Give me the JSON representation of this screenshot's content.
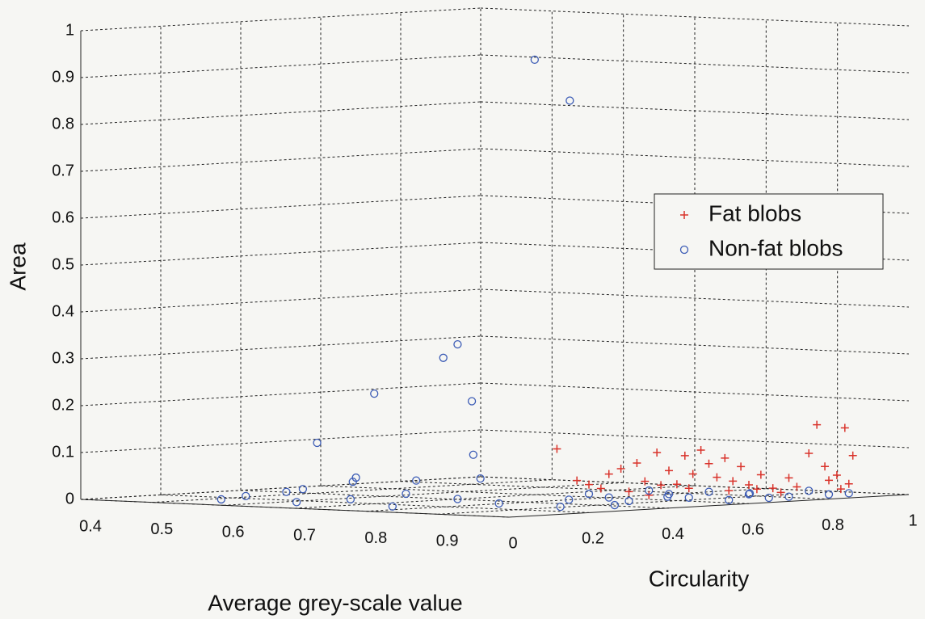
{
  "chart_data": {
    "type": "scatter3d",
    "xlabel": "Average grey-scale value",
    "ylabel": "Circularity",
    "zlabel": "Area",
    "xlim": [
      0.4,
      1
    ],
    "ylim": [
      0,
      1
    ],
    "zlim": [
      0,
      1
    ],
    "xticks": [
      0.4,
      0.5,
      0.6,
      0.7,
      0.8,
      0.9
    ],
    "yticks": [
      0,
      0.2,
      0.4,
      0.6,
      0.8,
      1
    ],
    "zticks": [
      0,
      0.1,
      0.2,
      0.3,
      0.4,
      0.5,
      0.6,
      0.7,
      0.8,
      0.9,
      1
    ],
    "grid": true,
    "legend": "upper right",
    "series": [
      {
        "name": "Fat blobs",
        "color": "#d9332b",
        "marker": "+",
        "x": [
          1,
          1,
          1,
          1,
          1,
          1,
          1,
          1,
          1,
          1,
          1,
          1,
          1,
          1,
          1,
          1,
          1,
          1,
          1,
          1,
          1,
          1,
          1,
          1,
          1,
          1,
          1,
          1,
          1,
          1,
          1,
          1,
          1,
          1,
          1,
          1,
          1,
          1,
          1,
          1
        ],
        "y": [
          0.12,
          0.17,
          0.2,
          0.23,
          0.28,
          0.32,
          0.34,
          0.37,
          0.4,
          0.42,
          0.44,
          0.46,
          0.48,
          0.5,
          0.52,
          0.54,
          0.56,
          0.58,
          0.6,
          0.63,
          0.66,
          0.7,
          0.72,
          0.75,
          0.77,
          0.79,
          0.8,
          0.82,
          0.84,
          0.85,
          0.86,
          0.83,
          0.45,
          0.38,
          0.3,
          0.25,
          0.62,
          0.68,
          0.35,
          0.55
        ],
        "z": [
          0.14,
          0.07,
          0.06,
          0.05,
          0.09,
          0.1,
          0.06,
          0.12,
          0.08,
          0.05,
          0.11,
          0.07,
          0.12,
          0.09,
          0.06,
          0.1,
          0.05,
          0.08,
          0.04,
          0.06,
          0.03,
          0.05,
          0.03,
          0.1,
          0.16,
          0.07,
          0.04,
          0.05,
          0.15,
          0.03,
          0.09,
          0.02,
          0.04,
          0.05,
          0.04,
          0.08,
          0.03,
          0.02,
          0.03,
          0.03
        ]
      },
      {
        "name": "Non-fat blobs",
        "color": "#3b5bb5",
        "marker": "o",
        "x": [
          0.98,
          0.99,
          0.9,
          0.88,
          0.92,
          0.8,
          0.95,
          0.72,
          0.87,
          0.96,
          0.77,
          0.78,
          0.7,
          0.85,
          0.62,
          0.66,
          0.75,
          0.9,
          0.93,
          1,
          1,
          1,
          1,
          1,
          1,
          1,
          1,
          1,
          1,
          1,
          1,
          1,
          1,
          1,
          0.98,
          0.97,
          0.99,
          0.96,
          0.58,
          0.82,
          0.68
        ],
        "y": [
          0.1,
          0.17,
          0.05,
          0.05,
          0.05,
          0.02,
          0,
          0.02,
          0,
          0,
          0.02,
          0.01,
          0.02,
          0.01,
          0.02,
          0.05,
          0.05,
          0.05,
          0.1,
          0.15,
          0.2,
          0.25,
          0.3,
          0.35,
          0.4,
          0.45,
          0.5,
          0.55,
          0.6,
          0.65,
          0.7,
          0.75,
          0.8,
          0.85,
          0.3,
          0.45,
          0.62,
          0.2,
          0.03,
          0.03,
          0.04
        ],
        "z": [
          0.97,
          0.88,
          0.36,
          0.33,
          0.24,
          0.25,
          0.13,
          0.14,
          0.07,
          0.08,
          0.06,
          0.07,
          0.04,
          0.04,
          0.02,
          0.03,
          0.02,
          0.03,
          0.02,
          0.03,
          0.04,
          0.03,
          0.02,
          0.04,
          0.03,
          0.02,
          0.03,
          0.01,
          0.02,
          0.01,
          0.01,
          0.02,
          0.01,
          0.01,
          0.01,
          0.02,
          0.02,
          0.01,
          0.01,
          0.01,
          0.01
        ]
      }
    ]
  }
}
